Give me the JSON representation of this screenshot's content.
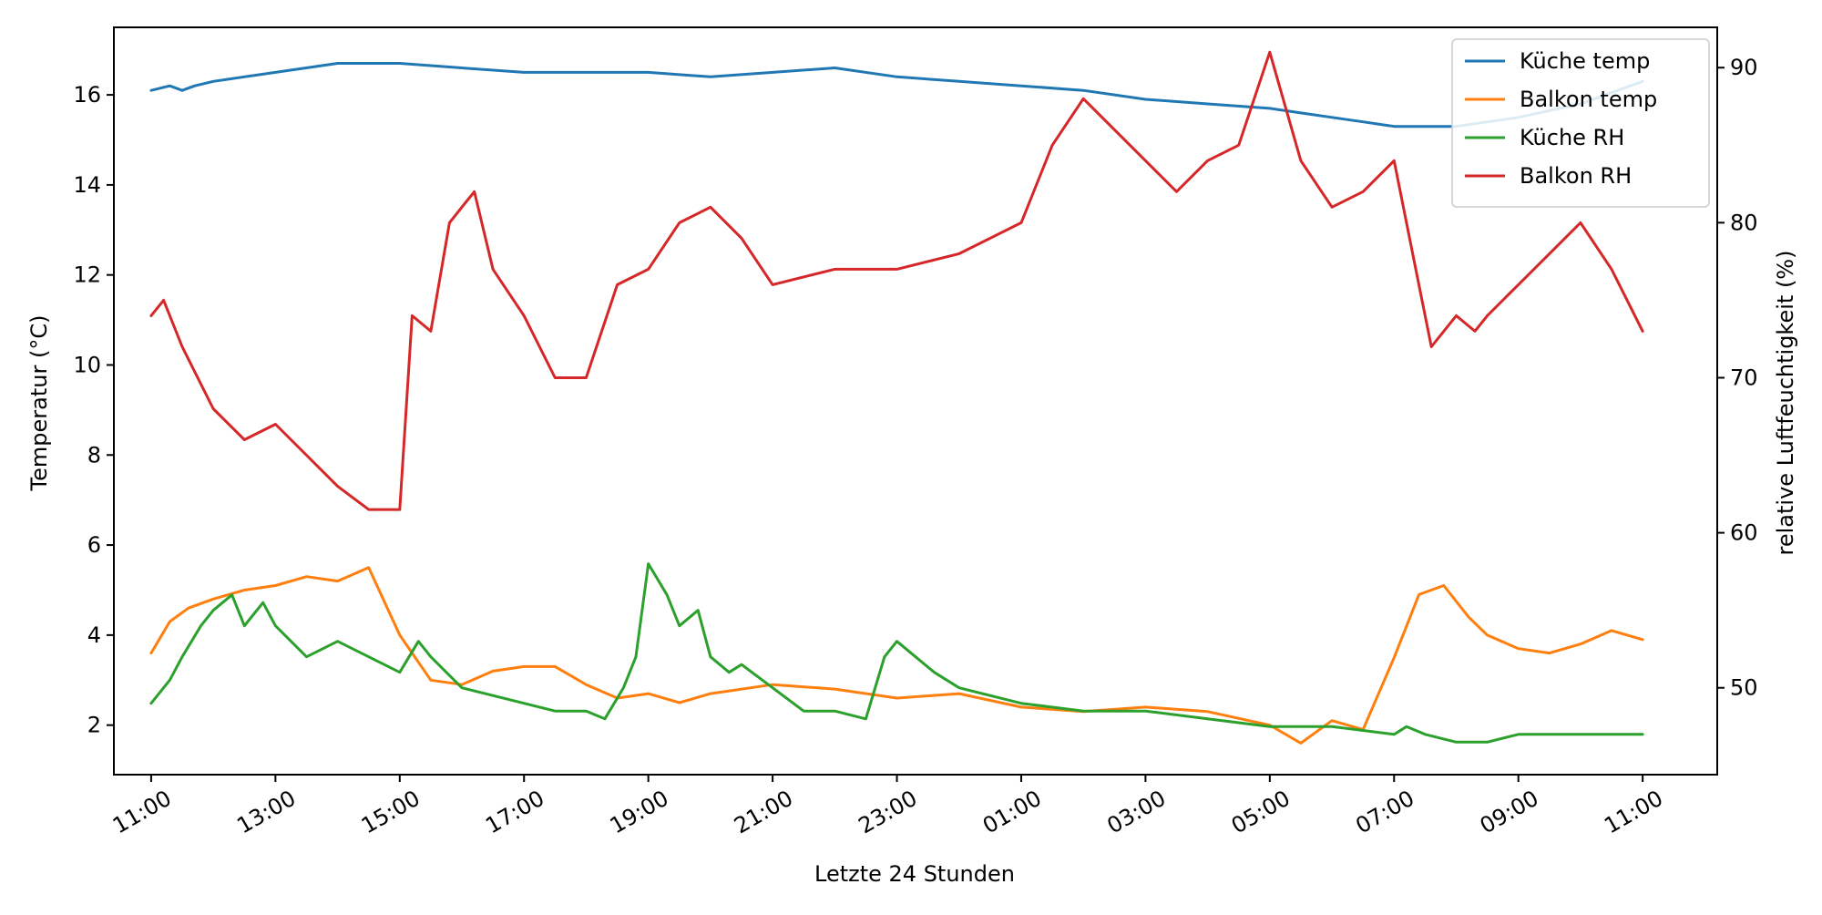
{
  "chart_data": {
    "type": "line",
    "title": "",
    "xlabel": "Letzte 24 Stunden",
    "ylabel": "Temperatur (°C)",
    "ylabel_right": "relative Luftfeuchtigkeit (%)",
    "x_unit": "hours since 11:00",
    "xlim": [
      -0.6,
      25.2
    ],
    "ylim": [
      0.9,
      17.5
    ],
    "ylim_right": [
      44.4,
      92.6
    ],
    "x_ticks": [
      0,
      2,
      4,
      6,
      8,
      10,
      12,
      14,
      16,
      18,
      20,
      22,
      24
    ],
    "x_tick_labels": [
      "11:00",
      "13:00",
      "15:00",
      "17:00",
      "19:00",
      "21:00",
      "23:00",
      "01:00",
      "03:00",
      "05:00",
      "07:00",
      "09:00",
      "11:00"
    ],
    "y_ticks": [
      2,
      4,
      6,
      8,
      10,
      12,
      14,
      16
    ],
    "y_ticks_right": [
      50,
      60,
      70,
      80,
      90
    ],
    "grid": false,
    "legend_position": "top-right",
    "series": [
      {
        "name": "Küche temp",
        "axis": "left",
        "color": "#1f77b4",
        "x": [
          0,
          0.3,
          0.5,
          0.7,
          1,
          2,
          3,
          4,
          5,
          6,
          7,
          8,
          9,
          10,
          11,
          12,
          13,
          14,
          15,
          16,
          17,
          18,
          18.5,
          19,
          19.5,
          20,
          21,
          22,
          23,
          24
        ],
        "y": [
          16.1,
          16.2,
          16.1,
          16.2,
          16.3,
          16.5,
          16.7,
          16.7,
          16.6,
          16.5,
          16.5,
          16.5,
          16.4,
          16.5,
          16.6,
          16.4,
          16.3,
          16.2,
          16.1,
          15.9,
          15.8,
          15.7,
          15.6,
          15.5,
          15.4,
          15.3,
          15.3,
          15.5,
          15.8,
          16.3
        ]
      },
      {
        "name": "Balkon temp",
        "axis": "left",
        "color": "#ff7f0e",
        "x": [
          0,
          0.3,
          0.6,
          1,
          1.5,
          2,
          2.5,
          3,
          3.5,
          4,
          4.5,
          5,
          5.5,
          6,
          6.5,
          7,
          7.5,
          8,
          8.5,
          9,
          10,
          11,
          12,
          13,
          14,
          15,
          16,
          17,
          18,
          18.5,
          19,
          19.5,
          20,
          20.4,
          20.8,
          21.2,
          21.5,
          22,
          22.5,
          23,
          23.5,
          24
        ],
        "y": [
          3.6,
          4.3,
          4.6,
          4.8,
          5.0,
          5.1,
          5.3,
          5.2,
          5.5,
          4.0,
          3.0,
          2.9,
          3.2,
          3.3,
          3.3,
          2.9,
          2.6,
          2.7,
          2.5,
          2.7,
          2.9,
          2.8,
          2.6,
          2.7,
          2.4,
          2.3,
          2.4,
          2.3,
          2.0,
          1.6,
          2.1,
          1.9,
          3.5,
          4.9,
          5.1,
          4.4,
          4.0,
          3.7,
          3.6,
          3.8,
          4.1,
          3.9
        ]
      },
      {
        "name": "Küche RH",
        "axis": "right",
        "color": "#2ca02c",
        "x": [
          0,
          0.3,
          0.5,
          0.8,
          1,
          1.3,
          1.5,
          1.8,
          2,
          2.5,
          3,
          3.5,
          4,
          4.3,
          4.5,
          5,
          5.5,
          6,
          6.5,
          7,
          7.3,
          7.6,
          7.8,
          8,
          8.3,
          8.5,
          8.8,
          9,
          9.3,
          9.5,
          10,
          10.5,
          11,
          11.5,
          11.8,
          12,
          12.3,
          12.6,
          13,
          14,
          15,
          16,
          17,
          18,
          19,
          20,
          20.2,
          20.5,
          21,
          21.5,
          22,
          22.5,
          23,
          23.5,
          24
        ],
        "y": [
          49,
          50.5,
          52,
          54,
          55,
          56,
          54,
          55.5,
          54,
          52,
          53,
          52,
          51,
          53,
          52,
          50,
          49.5,
          49,
          48.5,
          48.5,
          48,
          50,
          52,
          58,
          56,
          54,
          55,
          52,
          51,
          51.5,
          50,
          48.5,
          48.5,
          48,
          52,
          53,
          52,
          51,
          50,
          49,
          48.5,
          48.5,
          48,
          47.5,
          47.5,
          47,
          47.5,
          47,
          46.5,
          46.5,
          47,
          47,
          47,
          47,
          47
        ]
      },
      {
        "name": "Balkon RH",
        "axis": "right",
        "color": "#d62728",
        "x": [
          0,
          0.2,
          0.5,
          1,
          1.5,
          2,
          2.5,
          3,
          3.5,
          4,
          4.2,
          4.5,
          4.8,
          5,
          5.2,
          5.5,
          6,
          6.5,
          7,
          7.5,
          8,
          8.5,
          9,
          9.5,
          10,
          11,
          12,
          13,
          14,
          14.5,
          15,
          15.5,
          16,
          16.5,
          17,
          17.5,
          18,
          18.5,
          19,
          19.5,
          20,
          20.3,
          20.6,
          21,
          21.3,
          21.5,
          22,
          22.5,
          23,
          23.5,
          24
        ],
        "y": [
          74,
          75,
          72,
          68,
          66,
          67,
          65,
          63,
          61.5,
          61.5,
          74,
          73,
          80,
          81,
          82,
          77,
          74,
          70,
          70,
          76,
          77,
          80,
          81,
          79,
          76,
          77,
          77,
          78,
          80,
          85,
          88,
          86,
          84,
          82,
          84,
          85,
          91,
          84,
          81,
          82,
          84,
          78,
          72,
          74,
          73,
          74,
          76,
          78,
          80,
          77,
          73
        ]
      }
    ]
  }
}
